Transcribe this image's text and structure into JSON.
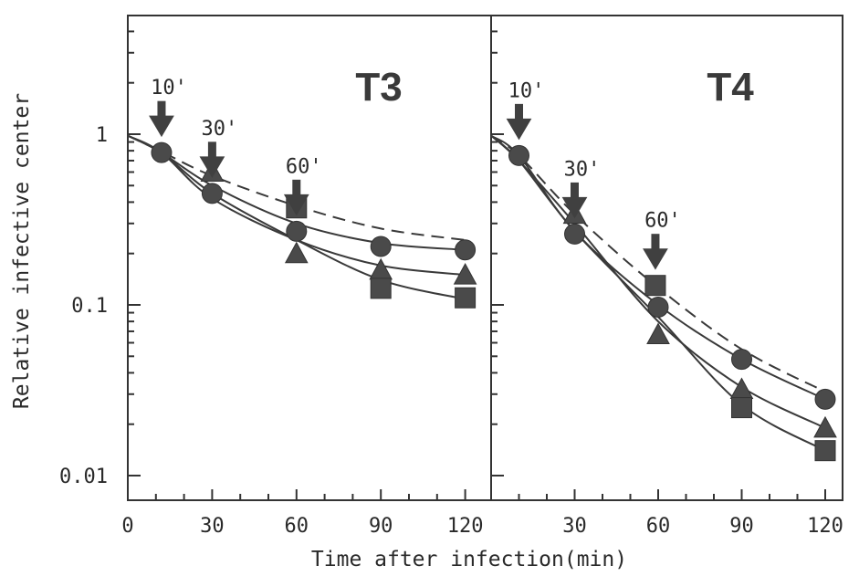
{
  "chart_data": [
    {
      "type": "line",
      "panel_title": "T3",
      "xlabel": "Time after infection(min)",
      "ylabel": "Relative infective center",
      "yscale": "log",
      "xlim": [
        0,
        130
      ],
      "ylim": [
        0.007,
        4
      ],
      "x_ticks": [
        "0",
        "30",
        "60",
        "90",
        "120"
      ],
      "y_ticks": [
        "1",
        "0.1",
        "0.01"
      ],
      "arrows": [
        {
          "label": "10'",
          "x": 12
        },
        {
          "label": "30'",
          "x": 30
        },
        {
          "label": "60'",
          "x": 60
        }
      ],
      "series": [
        {
          "marker": "circle",
          "line": "solid",
          "x": [
            12,
            30,
            60,
            90,
            120
          ],
          "y": [
            0.78,
            0.45,
            0.27,
            0.22,
            0.21
          ],
          "fit": {
            "x": [
              0,
              12,
              30,
              60,
              90,
              120
            ],
            "y": [
              0.98,
              0.78,
              0.5,
              0.3,
              0.23,
              0.21
            ]
          }
        },
        {
          "marker": "triangle",
          "line": "solid",
          "x": [
            30,
            60,
            90,
            120
          ],
          "y": [
            0.6,
            0.2,
            0.16,
            0.15
          ],
          "fit": {
            "x": [
              0,
              12,
              30,
              60,
              90,
              120
            ],
            "y": [
              0.98,
              0.78,
              0.42,
              0.24,
              0.17,
              0.15
            ]
          }
        },
        {
          "marker": "square",
          "line": "solid",
          "x": [
            60,
            90,
            120
          ],
          "y": [
            0.37,
            0.125,
            0.11
          ],
          "fit": {
            "x": [
              0,
              12,
              30,
              60,
              90,
              120
            ],
            "y": [
              0.98,
              0.78,
              0.45,
              0.24,
              0.14,
              0.108
            ]
          }
        },
        {
          "marker": "none",
          "line": "dashed",
          "x": [
            0,
            12,
            30,
            60,
            90,
            120
          ],
          "y": [
            0.98,
            0.79,
            0.57,
            0.38,
            0.28,
            0.24
          ]
        }
      ]
    },
    {
      "type": "line",
      "panel_title": "T4",
      "xlabel": "Time after infection(min)",
      "ylabel": "Relative infective center",
      "yscale": "log",
      "xlim": [
        0,
        130
      ],
      "ylim": [
        0.007,
        4
      ],
      "x_ticks": [
        "30",
        "60",
        "90",
        "120"
      ],
      "arrows": [
        {
          "label": "10'",
          "x": 10
        },
        {
          "label": "30'",
          "x": 30
        },
        {
          "label": "60'",
          "x": 59
        }
      ],
      "series": [
        {
          "marker": "circle",
          "line": "solid",
          "x": [
            10,
            30,
            60,
            90,
            120
          ],
          "y": [
            0.75,
            0.26,
            0.097,
            0.048,
            0.028
          ],
          "fit": {
            "x": [
              0,
              10,
              30,
              60,
              90,
              120
            ],
            "y": [
              0.98,
              0.75,
              0.27,
              0.1,
              0.048,
              0.028
            ]
          }
        },
        {
          "marker": "triangle",
          "line": "solid",
          "x": [
            30,
            60,
            90,
            120
          ],
          "y": [
            0.34,
            0.067,
            0.032,
            0.019
          ],
          "fit": {
            "x": [
              0,
              10,
              30,
              60,
              90,
              120
            ],
            "y": [
              0.98,
              0.7,
              0.3,
              0.08,
              0.033,
              0.019
            ]
          }
        },
        {
          "marker": "square",
          "line": "solid",
          "x": [
            59,
            90,
            120
          ],
          "y": [
            0.13,
            0.025,
            0.014
          ],
          "fit": {
            "x": [
              0,
              10,
              30,
              60,
              90,
              120
            ],
            "y": [
              0.98,
              0.7,
              0.27,
              0.085,
              0.026,
              0.014
            ]
          }
        },
        {
          "marker": "none",
          "line": "dashed",
          "x": [
            0,
            10,
            30,
            59,
            90,
            120
          ],
          "y": [
            0.98,
            0.75,
            0.34,
            0.13,
            0.055,
            0.031
          ]
        }
      ]
    }
  ]
}
